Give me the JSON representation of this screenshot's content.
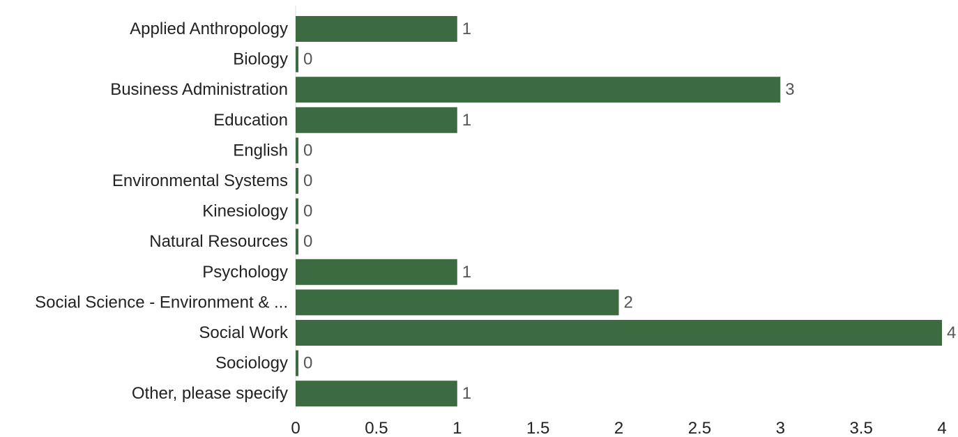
{
  "chart_data": {
    "type": "bar",
    "orientation": "horizontal",
    "categories": [
      "Applied Anthropology",
      "Biology",
      "Business Administration",
      "Education",
      "English",
      "Environmental Systems",
      "Kinesiology",
      "Natural Resources",
      "Psychology",
      "Social Science - Environment & ...",
      "Social Work",
      "Sociology",
      "Other, please specify"
    ],
    "values": [
      1,
      0,
      3,
      1,
      0,
      0,
      0,
      0,
      1,
      2,
      4,
      0,
      1
    ],
    "title": "",
    "xlabel": "",
    "ylabel": "",
    "xlim": [
      0,
      4
    ],
    "xticks": [
      "0",
      "0.5",
      "1",
      "1.5",
      "2",
      "2.5",
      "3",
      "3.5",
      "4"
    ],
    "grid": false,
    "legend": "none",
    "bar_color": "#3d6b41",
    "axis_color": "#dddddd"
  }
}
